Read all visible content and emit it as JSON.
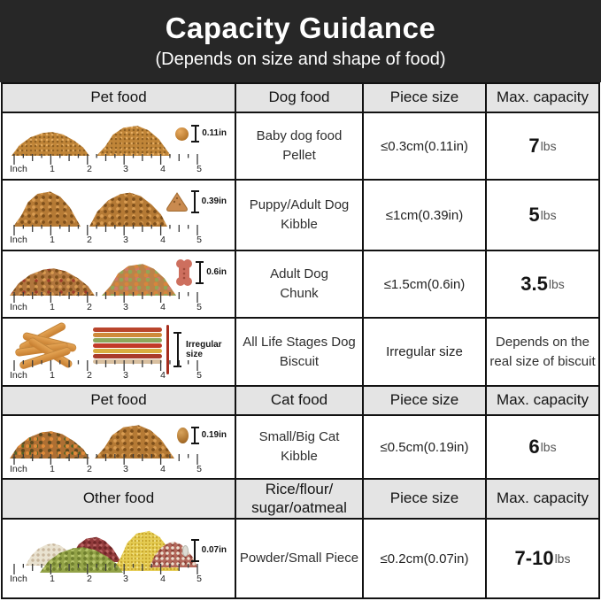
{
  "banner": {
    "title": "Capacity Guidance",
    "subtitle": "(Depends on size and shape of food)"
  },
  "ruler": {
    "unit": "Inch",
    "marks": [
      "1",
      "2",
      "3",
      "4",
      "5"
    ]
  },
  "sections": [
    {
      "header": {
        "c1": "Pet food",
        "c2": "Dog food",
        "c3": "Piece size",
        "c4": "Max. capacity"
      },
      "rows": [
        {
          "name1": "Baby dog food",
          "name2": "Pellet",
          "piece": "≤0.3cm(0.11in)",
          "cap": "7",
          "unit": "lbs",
          "measure": "0.11in"
        },
        {
          "name1": "Puppy/Adult Dog",
          "name2": "Kibble",
          "piece": "≤1cm(0.39in)",
          "cap": "5",
          "unit": "lbs",
          "measure": "0.39in"
        },
        {
          "name1": "Adult Dog",
          "name2": "Chunk",
          "piece": "≤1.5cm(0.6in)",
          "cap": "3.5",
          "unit": "lbs",
          "measure": "0.6in"
        },
        {
          "name1": "All Life Stages Dog",
          "name2": "Biscuit",
          "piece": "Irregular size",
          "cap_text1": "Depends on the",
          "cap_text2": "real size of biscuit",
          "measure": "Irregular size"
        }
      ]
    },
    {
      "header": {
        "c1": "Pet food",
        "c2": "Cat food",
        "c3": "Piece size",
        "c4": "Max. capacity"
      },
      "rows": [
        {
          "name1": "Small/Big Cat",
          "name2": "Kibble",
          "piece": "≤0.5cm(0.19in)",
          "cap": "6",
          "unit": "lbs",
          "measure": "0.19in"
        }
      ]
    },
    {
      "header": {
        "c1": "Other food",
        "c2a": "Rice/flour/",
        "c2b": "sugar/oatmeal",
        "c3": "Piece size",
        "c4": "Max. capacity"
      },
      "rows": [
        {
          "name1": "Powder/Small Piece",
          "piece": "≤0.2cm(0.07in)",
          "cap": "7-10",
          "unit": "lbs",
          "measure": "0.07in"
        }
      ]
    }
  ],
  "colors": {
    "banner_bg": "#272727",
    "header_bg": "#e4e4e4",
    "border": "#121212",
    "accent_red": "#a62d1d"
  }
}
